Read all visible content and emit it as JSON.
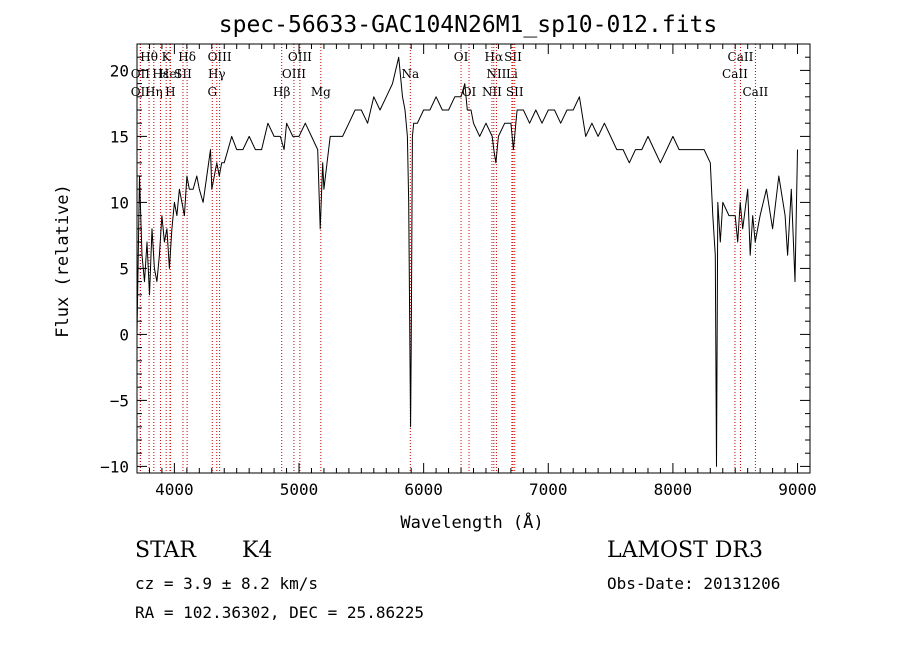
{
  "chart_data": {
    "type": "line",
    "title": "spec-56633-GAC104N26M1_sp10-012.fits",
    "xlabel": "Wavelength (Å)",
    "ylabel": "Flux (relative)",
    "xlim": [
      3700,
      9100
    ],
    "ylim": [
      -10.5,
      22
    ],
    "x_ticks": [
      4000,
      5000,
      6000,
      7000,
      8000,
      9000
    ],
    "y_ticks": [
      -10,
      -5,
      0,
      5,
      10,
      15,
      20
    ],
    "series": [
      {
        "name": "flux",
        "x": [
          3700,
          3720,
          3740,
          3760,
          3780,
          3800,
          3820,
          3840,
          3860,
          3880,
          3900,
          3920,
          3940,
          3960,
          3980,
          4000,
          4020,
          4040,
          4060,
          4080,
          4100,
          4120,
          4150,
          4180,
          4200,
          4230,
          4260,
          4290,
          4300,
          4320,
          4340,
          4360,
          4380,
          4400,
          4430,
          4460,
          4500,
          4550,
          4600,
          4650,
          4700,
          4750,
          4800,
          4850,
          4880,
          4900,
          4950,
          5000,
          5050,
          5100,
          5150,
          5170,
          5190,
          5200,
          5250,
          5300,
          5350,
          5400,
          5450,
          5500,
          5550,
          5600,
          5650,
          5700,
          5750,
          5800,
          5830,
          5850,
          5870,
          5880,
          5890,
          5895,
          5900,
          5910,
          5920,
          5950,
          6000,
          6050,
          6100,
          6150,
          6200,
          6250,
          6300,
          6330,
          6350,
          6380,
          6400,
          6450,
          6500,
          6550,
          6563,
          6580,
          6600,
          6650,
          6700,
          6720,
          6750,
          6800,
          6850,
          6900,
          6950,
          7000,
          7050,
          7100,
          7150,
          7200,
          7250,
          7300,
          7350,
          7400,
          7450,
          7500,
          7550,
          7600,
          7650,
          7700,
          7750,
          7800,
          7850,
          7900,
          7950,
          8000,
          8050,
          8100,
          8150,
          8200,
          8250,
          8300,
          8320,
          8340,
          8350,
          8360,
          8380,
          8400,
          8450,
          8500,
          8520,
          8540,
          8560,
          8600,
          8620,
          8640,
          8660,
          8700,
          8750,
          8800,
          8850,
          8900,
          8920,
          8950,
          8980,
          9000
        ],
        "y": [
          0,
          12,
          6,
          4,
          7,
          3,
          8,
          5,
          4,
          6,
          9,
          7,
          8,
          5,
          8,
          10,
          9,
          11,
          10,
          9,
          12,
          11,
          11,
          12,
          11,
          10,
          12,
          14,
          11,
          12,
          13,
          12,
          13,
          13,
          14,
          15,
          14,
          14,
          15,
          14,
          14,
          16,
          15,
          15,
          14,
          16,
          15,
          15,
          16,
          15,
          14,
          8,
          13,
          11,
          15,
          15,
          15,
          16,
          17,
          17,
          16,
          18,
          17,
          18,
          19,
          21,
          18,
          17,
          15,
          10,
          -1,
          -7,
          -1,
          15,
          16,
          16,
          17,
          17,
          18,
          17,
          17,
          18,
          18,
          19,
          17,
          17,
          16,
          15,
          16,
          15,
          14,
          13,
          15,
          16,
          16,
          14,
          17,
          17,
          16,
          17,
          16,
          17,
          17,
          16,
          17,
          17,
          18,
          15,
          16,
          15,
          16,
          15,
          14,
          14,
          13,
          14,
          14,
          15,
          14,
          13,
          14,
          15,
          14,
          14,
          14,
          14,
          14,
          13,
          9,
          6,
          -10,
          10,
          7,
          10,
          9,
          9,
          7,
          10,
          8,
          11,
          6,
          9,
          7,
          9,
          11,
          8,
          12,
          9,
          6,
          11,
          4,
          14
        ]
      }
    ],
    "line_markers": [
      {
        "name": "Hθ",
        "wavelength": 3797,
        "row": 0
      },
      {
        "name": "OII",
        "wavelength": 3727,
        "row": 1
      },
      {
        "name": "OII",
        "wavelength": 3727,
        "row": 2
      },
      {
        "name": "K",
        "wavelength": 3934,
        "row": 0
      },
      {
        "name": "Hε",
        "wavelength": 3889,
        "row": 1
      },
      {
        "name": "Hη",
        "wavelength": 3835,
        "row": 2
      },
      {
        "name": "Hδ",
        "wavelength": 4102,
        "row": 0
      },
      {
        "name": "HeI",
        "wavelength": 3965,
        "row": 1
      },
      {
        "name": "SII",
        "wavelength": 4069,
        "row": 1
      },
      {
        "name": "H",
        "wavelength": 3968,
        "row": 2
      },
      {
        "name": "OIII",
        "wavelength": 4363,
        "row": 0
      },
      {
        "name": "Hγ",
        "wavelength": 4340,
        "row": 1
      },
      {
        "name": "G",
        "wavelength": 4304,
        "row": 2
      },
      {
        "name": "OIII",
        "wavelength": 5007,
        "row": 0
      },
      {
        "name": "OIII",
        "wavelength": 4959,
        "row": 1
      },
      {
        "name": "Hβ",
        "wavelength": 4861,
        "row": 2
      },
      {
        "name": "Mg",
        "wavelength": 5175,
        "row": 2
      },
      {
        "name": "Na",
        "wavelength": 5893,
        "row": 1
      },
      {
        "name": "OI",
        "wavelength": 6300,
        "row": 0
      },
      {
        "name": "OI",
        "wavelength": 6364,
        "row": 2
      },
      {
        "name": "Hα",
        "wavelength": 6563,
        "row": 0
      },
      {
        "name": "SII",
        "wavelength": 6717,
        "row": 0
      },
      {
        "name": "NII",
        "wavelength": 6584,
        "row": 1
      },
      {
        "name": "Li",
        "wavelength": 6708,
        "row": 1
      },
      {
        "name": "NII",
        "wavelength": 6548,
        "row": 2
      },
      {
        "name": "SII",
        "wavelength": 6731,
        "row": 2
      },
      {
        "name": "CaII",
        "wavelength": 8542,
        "row": 0
      },
      {
        "name": "CaII",
        "wavelength": 8498,
        "row": 1
      },
      {
        "name": "CaII",
        "wavelength": 8662,
        "row": 2
      }
    ],
    "colors": {
      "spectrum": "#000000",
      "line_markers": "#cc0000",
      "axes": "#000000"
    },
    "legend": "none",
    "grid": false
  },
  "footer": {
    "object_type": "STAR",
    "subclass": "K4",
    "survey": "LAMOST DR3",
    "redshift": "cz = 3.9 ± 8.2 km/s",
    "obs_date": "Obs-Date: 20131206",
    "coords": "RA = 102.36302, DEC =  25.86225"
  }
}
